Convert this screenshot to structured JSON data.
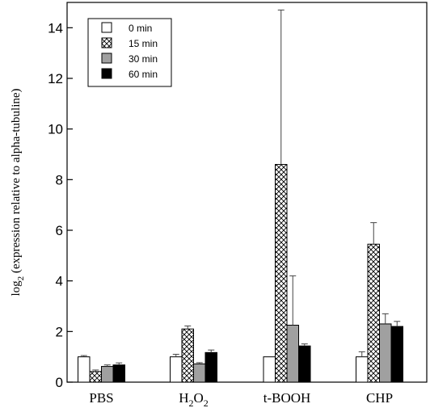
{
  "chart_data": {
    "type": "bar",
    "title": "",
    "xlabel": "",
    "ylabel": "log2 (expression relative to alpha-tubuline)",
    "ylabel_parts": {
      "prefix": "log",
      "sub": "2",
      "suffix": " (expression relative to alpha-tubuline)"
    },
    "ylim": [
      0,
      15
    ],
    "yticks": [
      0,
      2,
      4,
      6,
      8,
      10,
      12,
      14
    ],
    "grid": false,
    "legend_position": "top-left",
    "categories": [
      "PBS",
      "H2O2",
      "t-BOOH",
      "CHP"
    ],
    "category_labels": [
      {
        "text": "PBS"
      },
      {
        "text": "H",
        "sub": "2",
        "text2": "O",
        "sub2": "2"
      },
      {
        "text": "t-BOOH"
      },
      {
        "text": "CHP"
      }
    ],
    "series": [
      {
        "name": "0 min",
        "fill": "#ffffff",
        "pattern": "none",
        "values": [
          1.0,
          1.0,
          1.0,
          1.0
        ],
        "errors": [
          0.05,
          0.1,
          0.0,
          0.2
        ]
      },
      {
        "name": "15 min",
        "fill": "#ffffff",
        "pattern": "cross",
        "values": [
          0.42,
          2.1,
          8.6,
          5.45
        ],
        "errors": [
          0.06,
          0.12,
          6.1,
          0.85
        ]
      },
      {
        "name": "30 min",
        "fill": "#a0a0a0",
        "pattern": "none",
        "values": [
          0.62,
          0.72,
          2.25,
          2.3
        ],
        "errors": [
          0.06,
          0.05,
          1.95,
          0.4
        ]
      },
      {
        "name": "60 min",
        "fill": "#000000",
        "pattern": "none",
        "values": [
          0.68,
          1.17,
          1.43,
          2.2
        ],
        "errors": [
          0.08,
          0.1,
          0.08,
          0.2
        ]
      }
    ]
  }
}
